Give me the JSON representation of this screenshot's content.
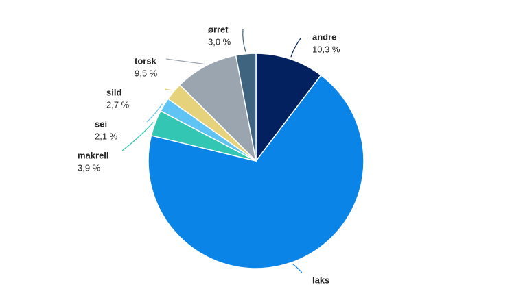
{
  "chart_data": {
    "type": "pie",
    "categories": [
      "andre",
      "laks",
      "makrell",
      "sei",
      "sild",
      "torsk",
      "ørret"
    ],
    "values": [
      10.3,
      68.5,
      3.9,
      2.1,
      2.7,
      9.5,
      3.0
    ],
    "value_labels": [
      "10,3 %",
      null,
      "3,9 %",
      "2,1 %",
      "2,7 %",
      "9,5 %",
      "3,0 %"
    ],
    "colors": [
      "#03205f",
      "#0a84e6",
      "#33c6b3",
      "#5fc3f3",
      "#e6d27b",
      "#9ba5b0",
      "#3e6480"
    ]
  }
}
